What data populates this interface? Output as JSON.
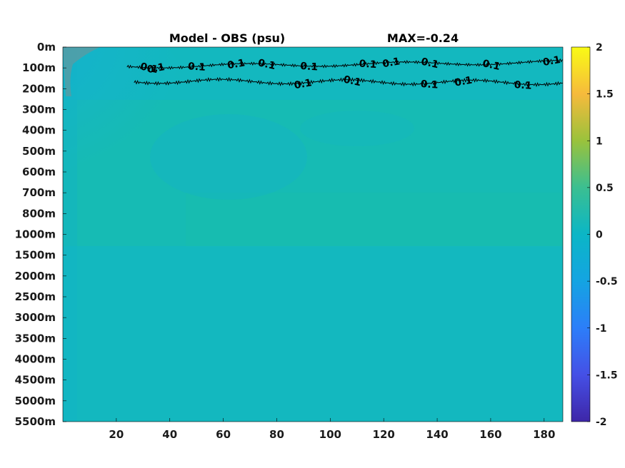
{
  "chart_data": {
    "type": "heatmap",
    "title": "Model - OBS (psu)",
    "subtitle": "MAX=-0.24",
    "xlabel": "",
    "ylabel": "",
    "xlim": [
      0,
      187
    ],
    "x_ticks": [
      20,
      40,
      60,
      80,
      100,
      120,
      140,
      160,
      180
    ],
    "y_ticks": [
      "0m",
      "100m",
      "200m",
      "300m",
      "400m",
      "500m",
      "600m",
      "700m",
      "800m",
      "1000m",
      "1500m",
      "2000m",
      "2500m",
      "3000m",
      "3500m",
      "4000m",
      "4500m",
      "5000m",
      "5500m"
    ],
    "colorbar": {
      "colormap": "parula",
      "range": [
        -2,
        2
      ],
      "ticks": [
        {
          "value": 2,
          "label": "2"
        },
        {
          "value": 1.5,
          "label": "1.5"
        },
        {
          "value": 1,
          "label": "1"
        },
        {
          "value": 0.5,
          "label": "0.5"
        },
        {
          "value": 0,
          "label": "0"
        },
        {
          "value": -0.5,
          "label": "-0.5"
        },
        {
          "value": -1,
          "label": "-1"
        },
        {
          "value": -1.5,
          "label": "-1.5"
        },
        {
          "value": -2,
          "label": "-2"
        }
      ]
    },
    "contour": {
      "level": 0.1,
      "depth_range": [
        "100m",
        "200m"
      ],
      "x_range": [
        24,
        187
      ],
      "labels": [
        {
          "text": "0.1",
          "x": 35,
          "y": "100m"
        },
        {
          "text": "0.1",
          "x": 32,
          "y": "100m"
        },
        {
          "text": "0.1",
          "x": 50,
          "y": "100m"
        },
        {
          "text": "0.1",
          "x": 65,
          "y": "100m"
        },
        {
          "text": "0.1",
          "x": 76,
          "y": "100m"
        },
        {
          "text": "0.1",
          "x": 92,
          "y": "100m"
        },
        {
          "text": "0.1",
          "x": 90,
          "y": "200m"
        },
        {
          "text": "0.1",
          "x": 108,
          "y": "200m"
        },
        {
          "text": "0.1",
          "x": 114,
          "y": "100m"
        },
        {
          "text": "0.1",
          "x": 123,
          "y": "100m"
        },
        {
          "text": "0.1",
          "x": 137,
          "y": "100m"
        },
        {
          "text": "0.1",
          "x": 137,
          "y": "200m"
        },
        {
          "text": "0.1",
          "x": 150,
          "y": "200m"
        },
        {
          "text": "0.1",
          "x": 160,
          "y": "100m"
        },
        {
          "text": "0.1",
          "x": 172,
          "y": "200m"
        },
        {
          "text": "0.1",
          "x": 183,
          "y": "100m"
        }
      ]
    },
    "field_notes": {
      "background_value": 0.02,
      "upper_left_minimum": -0.24
    }
  }
}
